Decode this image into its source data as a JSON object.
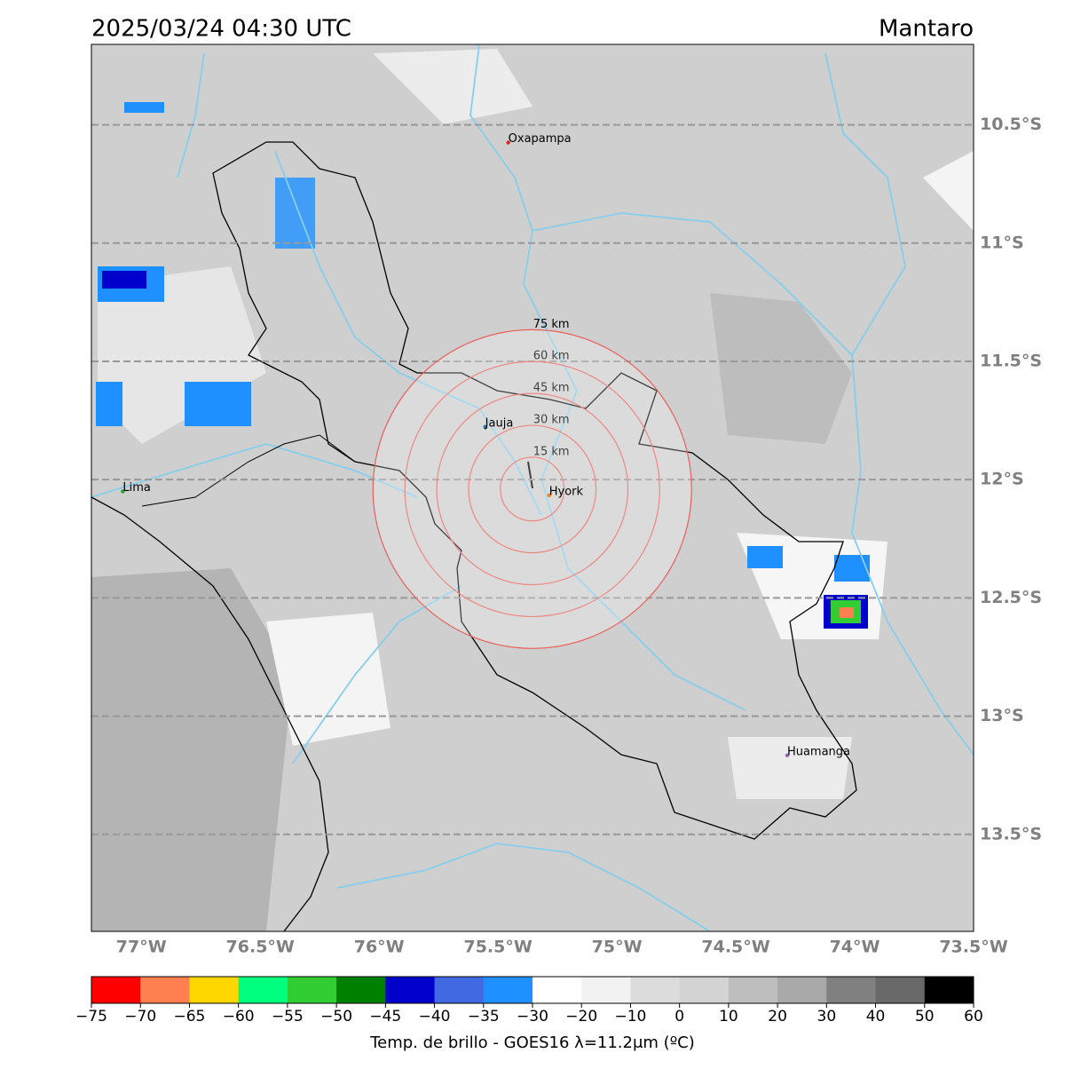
{
  "map": {
    "title": "2025/03/24 04:30 UTC",
    "region": "Mantaro",
    "xlim": [
      -77.21,
      -73.5
    ],
    "ylim": [
      -13.91,
      -10.16
    ],
    "lat_ticks": [
      {
        "value": -10.5,
        "label": "10.5°S"
      },
      {
        "value": -11,
        "label": "11°S"
      },
      {
        "value": -11.5,
        "label": "11.5°S"
      },
      {
        "value": -12,
        "label": "12°S"
      },
      {
        "value": -12.5,
        "label": "12.5°S"
      },
      {
        "value": -13,
        "label": "13°S"
      },
      {
        "value": -13.5,
        "label": "13.5°S"
      }
    ],
    "lon_ticks": [
      {
        "value": -77,
        "label": "77°W"
      },
      {
        "value": -76.5,
        "label": "76.5°W"
      },
      {
        "value": -76,
        "label": "76°W"
      },
      {
        "value": -75.5,
        "label": "75.5°W"
      },
      {
        "value": -75,
        "label": "75°W"
      },
      {
        "value": -74.5,
        "label": "74.5°W"
      },
      {
        "value": -74,
        "label": "74°W"
      },
      {
        "value": -73.5,
        "label": "73.5°W"
      }
    ],
    "cities": [
      {
        "name": "Oxapampa",
        "lon": -75.457,
        "lat": -10.575,
        "color": "#d62728"
      },
      {
        "name": "Jauja",
        "lon": -75.554,
        "lat": -11.777,
        "color": "#1f77b4"
      },
      {
        "name": "Hyork",
        "lon": -75.285,
        "lat": -12.066,
        "color": "#ff7f0e"
      },
      {
        "name": "Lima",
        "lon": -77.078,
        "lat": -12.05,
        "color": "#2ca02c"
      },
      {
        "name": "Huamanga",
        "lon": -74.284,
        "lat": -13.166,
        "color": "#9467bd"
      }
    ],
    "rings": {
      "center_lon": -75.356,
      "center_lat": -12.04,
      "color": "#e8605a",
      "items": [
        {
          "radius_km": 15,
          "label": "15 km"
        },
        {
          "radius_km": 30,
          "label": "30 km"
        },
        {
          "radius_km": 45,
          "label": "45 km"
        },
        {
          "radius_km": 60,
          "label": "60 km"
        },
        {
          "radius_km": 75,
          "label": "75 km"
        }
      ]
    }
  },
  "colorbar": {
    "label": "Temp. de brillo - GOES16 λ=11.2μm (ºC)",
    "ticks": [
      {
        "value": -75,
        "label": "−75"
      },
      {
        "value": -70,
        "label": "−70"
      },
      {
        "value": -65,
        "label": "−65"
      },
      {
        "value": -60,
        "label": "−60"
      },
      {
        "value": -55,
        "label": "−55"
      },
      {
        "value": -50,
        "label": "−50"
      },
      {
        "value": -45,
        "label": "−45"
      },
      {
        "value": -40,
        "label": "−40"
      },
      {
        "value": -35,
        "label": "−35"
      },
      {
        "value": -30,
        "label": "−30"
      },
      {
        "value": -20,
        "label": "−20"
      },
      {
        "value": -10,
        "label": "−10"
      },
      0,
      10,
      20,
      30,
      40,
      50,
      60
    ],
    "colors": [
      "#ff0000",
      "#ff7f50",
      "#ffd700",
      "#00ff7f",
      "#32cd32",
      "#008000",
      "#0000cd",
      "#4169e1",
      "#1e90ff",
      "#ffffff",
      "#f2f2f2",
      "#dcdcdc",
      "#d3d3d3",
      "#bebebe",
      "#a9a9a9",
      "#808080",
      "#696969",
      "#000000"
    ]
  }
}
